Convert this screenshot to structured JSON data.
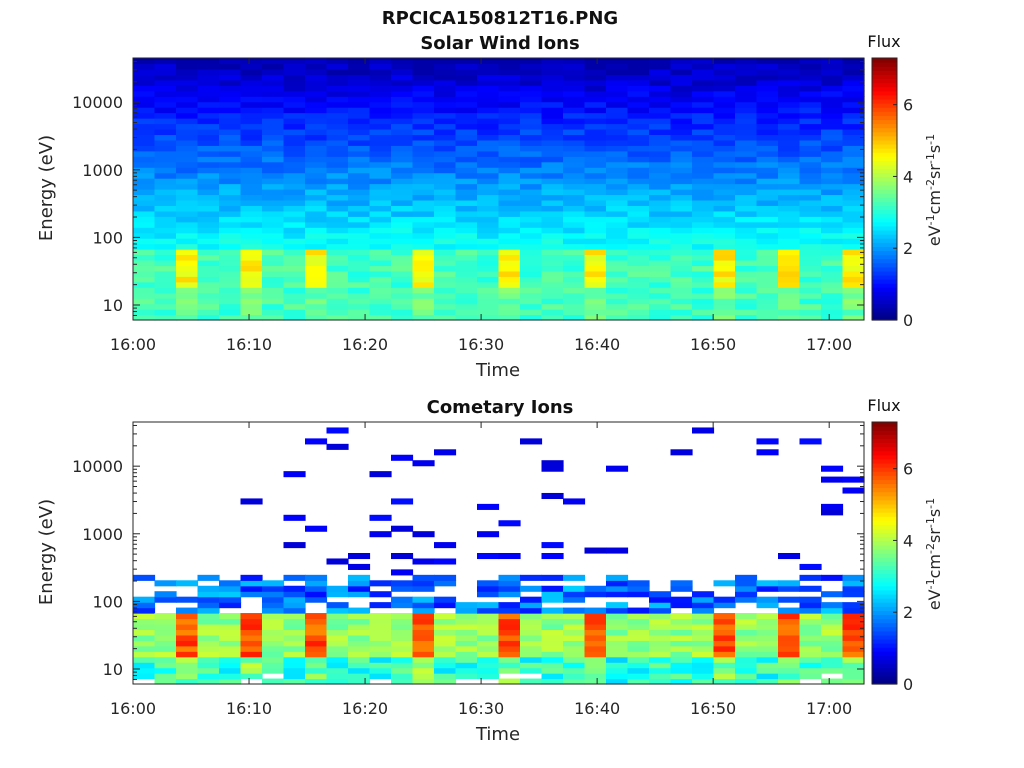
{
  "figure": {
    "title": "RPCICA150812T16.PNG"
  },
  "chart_data": [
    {
      "type": "heatmap",
      "title": "Solar Wind Ions",
      "xlabel": "Time",
      "ylabel": "Energy (eV)",
      "y_scale": "log",
      "x_ticks": [
        "16:00",
        "16:10",
        "16:20",
        "16:30",
        "16:40",
        "16:50",
        "17:00"
      ],
      "y_ticks": [
        "10",
        "100",
        "1000",
        "10000"
      ],
      "x_range": [
        "16:00",
        "17:03"
      ],
      "y_range": [
        6,
        45000
      ],
      "colorbar": {
        "title": "Flux",
        "label": "eV⁻¹cm⁻²sr⁻¹s⁻¹",
        "range": [
          0,
          7.3
        ],
        "ticks": [
          "0",
          "2",
          "4",
          "6"
        ]
      },
      "description_of_data": "Flux log10 values per (time, energy) bin: ~3.0-4.5 below ~60 eV with periodic peaks, decreasing to ~0.5 near 40000 eV"
    },
    {
      "type": "heatmap",
      "title": "Cometary Ions",
      "xlabel": "Time",
      "ylabel": "Energy (eV)",
      "y_scale": "log",
      "x_ticks": [
        "16:00",
        "16:10",
        "16:20",
        "16:30",
        "16:40",
        "16:50",
        "17:00"
      ],
      "y_ticks": [
        "10",
        "100",
        "1000",
        "10000"
      ],
      "x_range": [
        "16:00",
        "17:03"
      ],
      "y_range": [
        6,
        45000
      ],
      "colorbar": {
        "title": "Flux",
        "label": "eV⁻¹cm⁻²sr⁻¹s⁻¹",
        "range": [
          0,
          7.3
        ],
        "ticks": [
          "0",
          "2",
          "4",
          "6"
        ]
      },
      "description_of_data": "Bright band (flux ~4-6.5) between ~15 and ~60 eV with periodic peaks; sparse low-flux bins above 300 eV"
    }
  ]
}
